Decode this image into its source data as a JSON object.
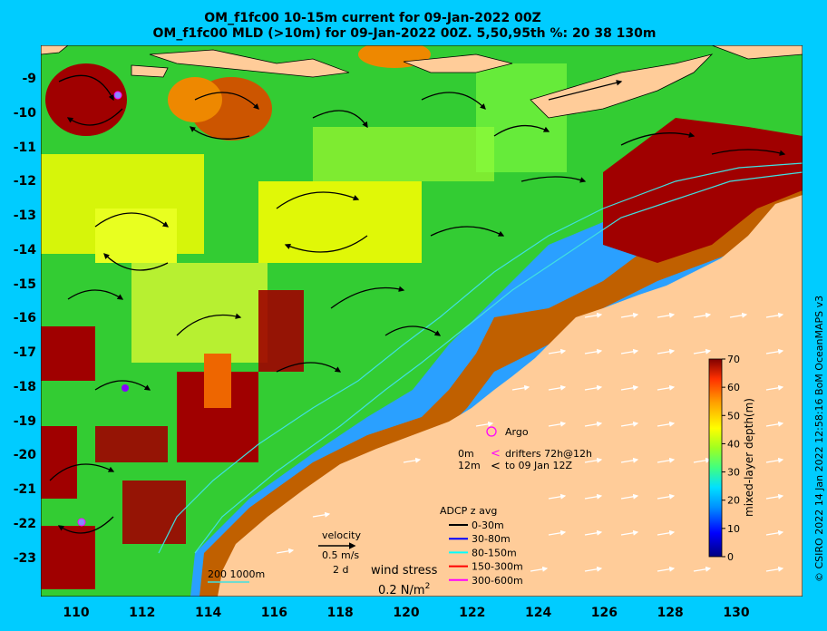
{
  "titles": {
    "line1": "OM_f1fc00 10-15m current for 09-Jan-2022 00Z",
    "line2": "OM_f1fc00 MLD (>10m) for 09-Jan-2022 00Z. 5,50,95th %: 20   38  130m"
  },
  "axes": {
    "x_ticks": [
      "110",
      "112",
      "114",
      "116",
      "118",
      "120",
      "122",
      "124",
      "126",
      "128",
      "130"
    ],
    "y_ticks": [
      "-9",
      "-10",
      "-11",
      "-12",
      "-13",
      "-14",
      "-15",
      "-16",
      "-17",
      "-18",
      "-19",
      "-20",
      "-21",
      "-22",
      "-23"
    ]
  },
  "colorbar": {
    "label": "mixed-layer depth(m)",
    "ticks": [
      "0",
      "10",
      "20",
      "30",
      "40",
      "50",
      "60",
      "70"
    ],
    "range": [
      0,
      70
    ]
  },
  "legend": {
    "argo": "Argo",
    "drifters_line1_left": "0m",
    "drifters_line1_right": "drifters 72h@12h",
    "drifters_line2_left": "12m",
    "drifters_line2_right": "to 09 Jan 12Z",
    "adcp_title": "ADCP z avg",
    "adcp_items": [
      {
        "label": "0-30m",
        "color": "#000000"
      },
      {
        "label": "30-80m",
        "color": "#0000ff"
      },
      {
        "label": "80-150m",
        "color": "#00ffff"
      },
      {
        "label": "150-300m",
        "color": "#ff0000"
      },
      {
        "label": "300-600m",
        "color": "#ff00ff"
      }
    ],
    "velocity_title": "velocity",
    "velocity_scale": "0.5 m/s",
    "velocity_time": "2 d",
    "wind_title": "wind stress",
    "wind_scale": "0.2 N/m",
    "wind_exp": "2",
    "bathy_label": "200  1000m"
  },
  "credit": "© CSIRO 2022  14 Jan 2022 12:58:16 BoM OceanMAPS v3"
}
